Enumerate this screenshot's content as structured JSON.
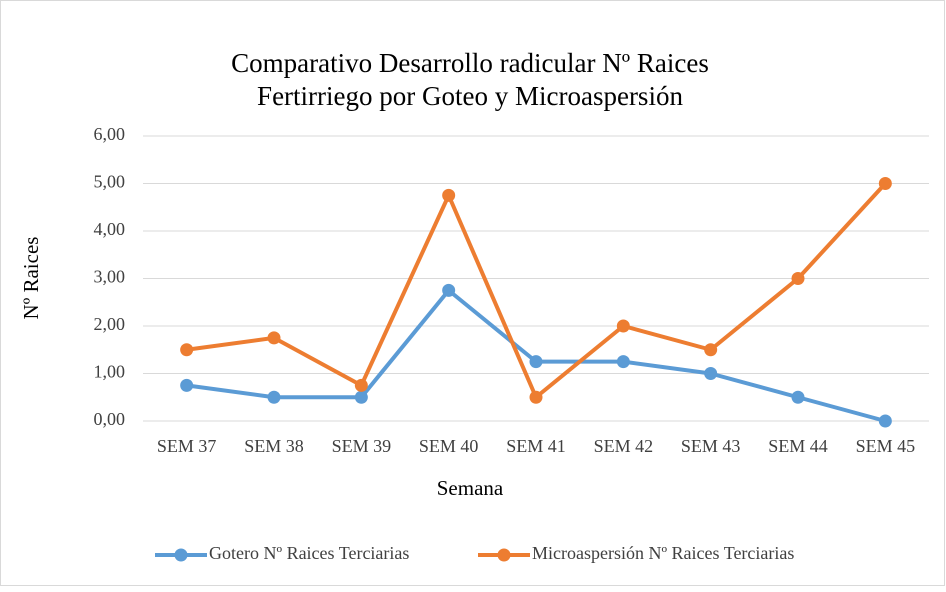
{
  "chart_data": {
    "type": "line",
    "title": [
      "Comparativo Desarrollo radicular Nº Raices",
      "Fertirriego por Goteo y Microaspersión"
    ],
    "xlabel": "Semana",
    "ylabel": "Nº Raices",
    "categories": [
      "SEM 37",
      "SEM 38",
      "SEM 39",
      "SEM 40",
      "SEM 41",
      "SEM 42",
      "SEM 43",
      "SEM 44",
      "SEM 45"
    ],
    "series": [
      {
        "name": "Gotero Nº Raices Terciarias",
        "color": "#5b9bd5",
        "values": [
          0.75,
          0.5,
          0.5,
          2.75,
          1.25,
          1.25,
          1.0,
          0.5,
          0.0
        ]
      },
      {
        "name": "Microaspersión Nº Raices Terciarias",
        "color": "#ed7d31",
        "values": [
          1.5,
          1.75,
          0.75,
          4.75,
          0.5,
          2.0,
          1.5,
          3.0,
          5.0
        ]
      }
    ],
    "ylim": [
      0,
      6
    ],
    "yticks": [
      {
        "value": 0,
        "label": "0,00"
      },
      {
        "value": 1,
        "label": "1,00"
      },
      {
        "value": 2,
        "label": "2,00"
      },
      {
        "value": 3,
        "label": "3,00"
      },
      {
        "value": 4,
        "label": "4,00"
      },
      {
        "value": 5,
        "label": "5,00"
      },
      {
        "value": 6,
        "label": "6,00"
      }
    ],
    "grid": true,
    "legend": "bottom"
  }
}
